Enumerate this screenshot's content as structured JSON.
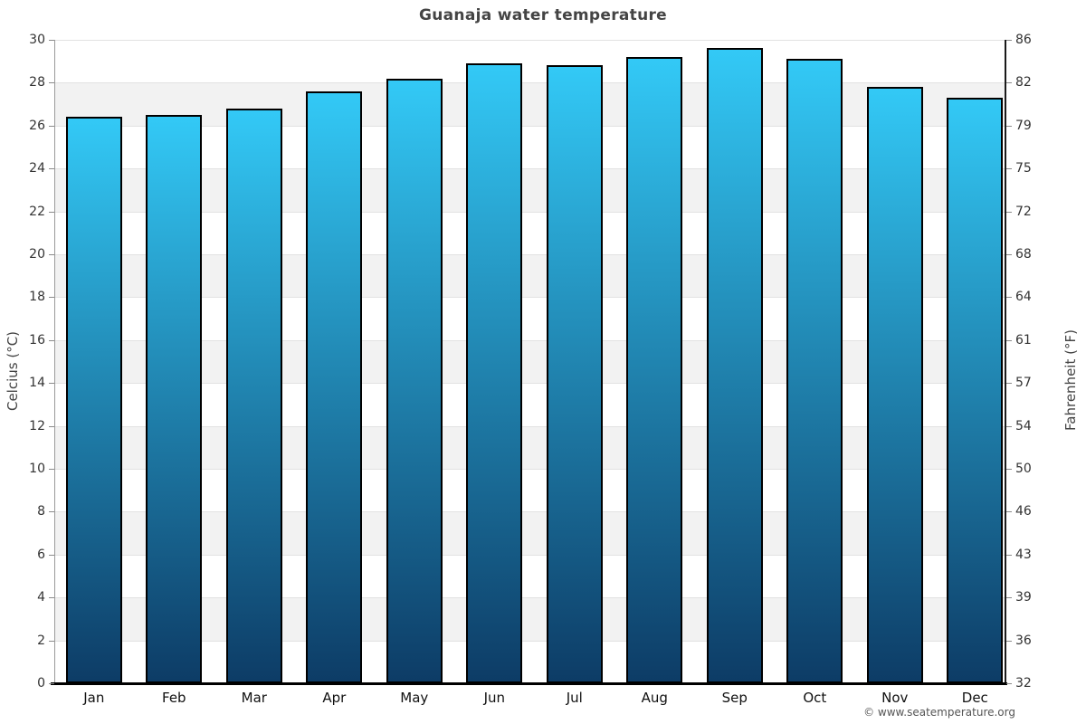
{
  "page": {
    "title": "Guanaja water temperature",
    "footer_credit": "© www.seatemperature.org"
  },
  "chart_data": {
    "type": "bar",
    "title": "Guanaja water temperature",
    "categories": [
      "Jan",
      "Feb",
      "Mar",
      "Apr",
      "May",
      "Jun",
      "Jul",
      "Aug",
      "Sep",
      "Oct",
      "Nov",
      "Dec"
    ],
    "series": [
      {
        "name": "Water temperature",
        "unit": "°C",
        "values": [
          26.4,
          26.5,
          26.8,
          27.6,
          28.2,
          28.9,
          28.8,
          29.2,
          29.6,
          29.1,
          27.8,
          27.3
        ]
      }
    ],
    "ylabel_left": "Celcius (°C)",
    "ylabel_right": "Fahrenheit (°F)",
    "ylim_celsius": [
      0,
      30
    ],
    "yticks_celsius": [
      30,
      28,
      26,
      24,
      22,
      20,
      18,
      16,
      14,
      12,
      10,
      8,
      6,
      4,
      2,
      0
    ],
    "yticks_fahrenheit": [
      86,
      82,
      79,
      75,
      72,
      68,
      64,
      61,
      57,
      54,
      50,
      46,
      43,
      39,
      36,
      32
    ],
    "grid": true,
    "legend": "none",
    "plot_band_color": "#f2f2f2",
    "plot_background_color": "#ffffff",
    "bar_color_top": "#33c9f6",
    "bar_color_bottom": "#0d3c66",
    "bar_border_color": "#000000"
  }
}
